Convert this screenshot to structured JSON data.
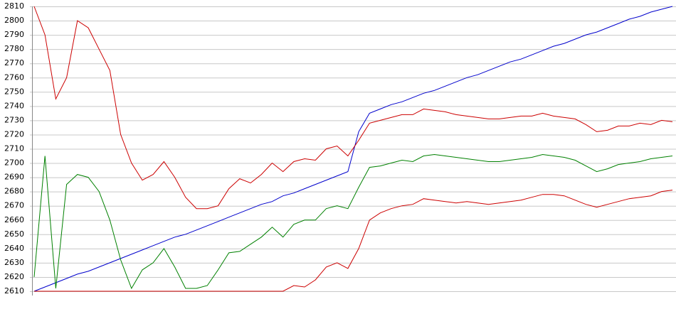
{
  "chart_data": {
    "type": "line",
    "categories": [
      null,
      null,
      null,
      null,
      null,
      null,
      null,
      null,
      null,
      null,
      null,
      null,
      null,
      null,
      null,
      null,
      null,
      null,
      null,
      null,
      null,
      null,
      null,
      null,
      null,
      null,
      null,
      null,
      null,
      null,
      null,
      null,
      null,
      null,
      null,
      null,
      null,
      null,
      null,
      null,
      null,
      null,
      null,
      null,
      null,
      null,
      null,
      null,
      null,
      null,
      null,
      null,
      null,
      null,
      null,
      null,
      null,
      null,
      null,
      null
    ],
    "ylim": [
      2610,
      2810
    ],
    "yticks": [
      2610,
      2620,
      2630,
      2640,
      2650,
      2660,
      2670,
      2680,
      2690,
      2700,
      2710,
      2720,
      2730,
      2740,
      2750,
      2760,
      2770,
      2780,
      2790,
      2800,
      2810
    ],
    "grid": true,
    "series": [
      {
        "color": "#0000cc",
        "values": [
          2610,
          2613,
          2616,
          2619,
          2622,
          2624,
          2627,
          2630,
          2633,
          2636,
          2639,
          2642,
          2645,
          2648,
          2650,
          2653,
          2656,
          2659,
          2662,
          2665,
          2668,
          2671,
          2673,
          2677,
          2679,
          2682,
          2685,
          2688,
          2691,
          2694,
          2722,
          2735,
          2738,
          2741,
          2743,
          2746,
          2749,
          2751,
          2754,
          2757,
          2760,
          2762,
          2765,
          2768,
          2771,
          2773,
          2776,
          2779,
          2782,
          2784,
          2787,
          2790,
          2792,
          2795,
          2798,
          2801,
          2803,
          2806,
          2808,
          2810
        ]
      },
      {
        "color": "#cc0000",
        "values": [
          2810,
          2790,
          2745,
          2760,
          2800,
          2795,
          2780,
          2765,
          2720,
          2700,
          2688,
          2692,
          2701,
          2690,
          2676,
          2668,
          2668,
          2670,
          2682,
          2689,
          2686,
          2692,
          2700,
          2694,
          2701,
          2703,
          2702,
          2710,
          2712,
          2705,
          2716,
          2728,
          2730,
          2732,
          2734,
          2734,
          2738,
          2737,
          2736,
          2734,
          2733,
          2732,
          2731,
          2731,
          2732,
          2733,
          2733,
          2735,
          2733,
          2732,
          2731,
          2727,
          2722,
          2723,
          2726,
          2726,
          2728,
          2727,
          2730,
          2729
        ]
      },
      {
        "color": "#008000",
        "values": [
          2620,
          2705,
          2612,
          2685,
          2692,
          2690,
          2680,
          2660,
          2632,
          2612,
          2625,
          2630,
          2640,
          2627,
          2612,
          2612,
          2614,
          2625,
          2637,
          2638,
          2643,
          2648,
          2655,
          2648,
          2657,
          2660,
          2660,
          2668,
          2670,
          2668,
          2683,
          2697,
          2698,
          2700,
          2702,
          2701,
          2705,
          2706,
          2705,
          2704,
          2703,
          2702,
          2701,
          2701,
          2702,
          2703,
          2704,
          2706,
          2705,
          2704,
          2702,
          2698,
          2694,
          2696,
          2699,
          2700,
          2701,
          2703,
          2704,
          2705
        ]
      },
      {
        "color": "#cc0000",
        "values": [
          2610,
          2610,
          2610,
          2610,
          2610,
          2610,
          2610,
          2610,
          2610,
          2610,
          2610,
          2610,
          2610,
          2610,
          2610,
          2610,
          2610,
          2610,
          2610,
          2610,
          2610,
          2610,
          2610,
          2610,
          2614,
          2613,
          2618,
          2627,
          2630,
          2626,
          2640,
          2660,
          2665,
          2668,
          2670,
          2671,
          2675,
          2674,
          2673,
          2672,
          2673,
          2672,
          2671,
          2672,
          2673,
          2674,
          2676,
          2678,
          2678,
          2677,
          2674,
          2671,
          2669,
          2671,
          2673,
          2675,
          2676,
          2677,
          2680,
          2681
        ]
      }
    ]
  }
}
